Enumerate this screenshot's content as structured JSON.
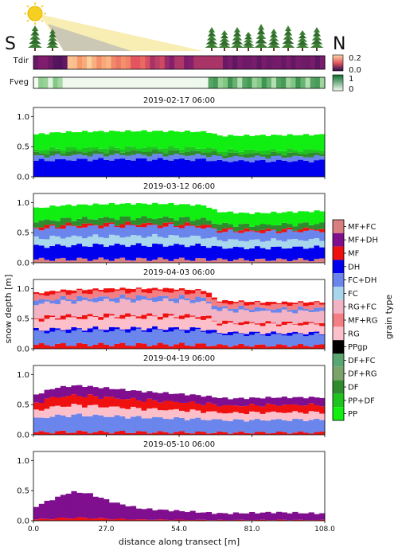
{
  "header": {
    "south_label": "S",
    "north_label": "N",
    "tdir_label": "Tdir",
    "fveg_label": "Fveg",
    "tdir_scale_ticks": [
      "0.2",
      "0.0"
    ],
    "fveg_scale_ticks": [
      "1",
      "0"
    ],
    "icons": [
      "sun-icon",
      "tree-icon"
    ]
  },
  "chart_data": {
    "type": "area",
    "xlabel": "distance along transect [m]",
    "ylabel": "snow depth [m]",
    "x_ticks": [
      "0.0",
      "27.0",
      "54.0",
      "81.0",
      "108.0"
    ],
    "y_ticks": [
      "0.0",
      "0.5",
      "1.0"
    ],
    "xlim": [
      0,
      108
    ],
    "ylim": [
      0,
      1.15
    ],
    "colorbar_title": "grain type",
    "grain_types": [
      {
        "name": "MF+FC",
        "color": "#d97f7f"
      },
      {
        "name": "MF+DH",
        "color": "#7f0f8f"
      },
      {
        "name": "MF",
        "color": "#ef1010"
      },
      {
        "name": "DH",
        "color": "#0000ee"
      },
      {
        "name": "FC+DH",
        "color": "#6a85ec"
      },
      {
        "name": "FC",
        "color": "#a8d6ec"
      },
      {
        "name": "RG+FC",
        "color": "#f2b3c4"
      },
      {
        "name": "MF+RG",
        "color": "#f37e84"
      },
      {
        "name": "RG",
        "color": "#fdc0cb"
      },
      {
        "name": "PPgp",
        "color": "#000000"
      },
      {
        "name": "DF+FC",
        "color": "#5aa672"
      },
      {
        "name": "DF+RG",
        "color": "#7ba36a"
      },
      {
        "name": "DF",
        "color": "#2e8b2e"
      },
      {
        "name": "PP+DF",
        "color": "#1ec41e"
      },
      {
        "name": "PP",
        "color": "#11ee11"
      }
    ],
    "panels": [
      {
        "title": "2019-02-17 06:00",
        "depth": [
          [
            0,
            0.7
          ],
          [
            10,
            0.74
          ],
          [
            20,
            0.75
          ],
          [
            40,
            0.76
          ],
          [
            60,
            0.75
          ],
          [
            66,
            0.74
          ],
          [
            68,
            0.68
          ],
          [
            90,
            0.69
          ],
          [
            108,
            0.7
          ]
        ],
        "layers": [
          {
            "type": "DH",
            "top": 0.38
          },
          {
            "type": "FC+DH",
            "top": 0.48
          },
          {
            "type": "DF",
            "top": 0.56
          },
          {
            "type": "PP+DF",
            "top": 0.64
          },
          {
            "type": "PP",
            "top": 1.0
          }
        ]
      },
      {
        "title": "2019-03-12 06:00",
        "depth": [
          [
            0,
            0.9
          ],
          [
            10,
            0.95
          ],
          [
            30,
            0.98
          ],
          [
            50,
            0.98
          ],
          [
            64,
            0.95
          ],
          [
            68,
            0.85
          ],
          [
            80,
            0.82
          ],
          [
            108,
            0.86
          ]
        ],
        "layers": [
          {
            "type": "MF+FC",
            "top": 0.06
          },
          {
            "type": "DH",
            "top": 0.3
          },
          {
            "type": "FC",
            "top": 0.45
          },
          {
            "type": "FC+DH",
            "top": 0.62
          },
          {
            "type": "MF",
            "top": 0.66
          },
          {
            "type": "DF",
            "top": 0.76
          },
          {
            "type": "PP",
            "top": 1.0
          }
        ]
      },
      {
        "title": "2019-04-03 06:00",
        "depth": [
          [
            0,
            0.92
          ],
          [
            10,
            0.97
          ],
          [
            30,
            1.0
          ],
          [
            50,
            1.0
          ],
          [
            64,
            0.97
          ],
          [
            68,
            0.8
          ],
          [
            90,
            0.77
          ],
          [
            108,
            0.78
          ]
        ],
        "layers": [
          {
            "type": "MF",
            "top": 0.07
          },
          {
            "type": "FC+DH",
            "top": 0.3
          },
          {
            "type": "DH",
            "top": 0.34
          },
          {
            "type": "RG",
            "top": 0.52
          },
          {
            "type": "MF",
            "top": 0.56
          },
          {
            "type": "RG+FC",
            "top": 0.8
          },
          {
            "type": "FC+DH",
            "top": 0.86
          },
          {
            "type": "MF+RG",
            "top": 0.95
          },
          {
            "type": "MF",
            "top": 1.0
          }
        ]
      },
      {
        "title": "2019-04-19 06:00",
        "depth": [
          [
            0,
            0.65
          ],
          [
            8,
            0.78
          ],
          [
            16,
            0.82
          ],
          [
            26,
            0.78
          ],
          [
            40,
            0.72
          ],
          [
            60,
            0.66
          ],
          [
            72,
            0.6
          ],
          [
            90,
            0.62
          ],
          [
            108,
            0.62
          ]
        ],
        "layers": [
          {
            "type": "MF",
            "top": 0.06
          },
          {
            "type": "FC+DH",
            "top": 0.4
          },
          {
            "type": "RG",
            "top": 0.6
          },
          {
            "type": "MF",
            "top": 0.8
          },
          {
            "type": "MF+DH",
            "top": 1.0
          }
        ]
      },
      {
        "title": "2019-05-10 06:00",
        "depth": [
          [
            0,
            0.22
          ],
          [
            5,
            0.32
          ],
          [
            14,
            0.48
          ],
          [
            20,
            0.46
          ],
          [
            30,
            0.3
          ],
          [
            40,
            0.2
          ],
          [
            55,
            0.16
          ],
          [
            70,
            0.12
          ],
          [
            90,
            0.14
          ],
          [
            108,
            0.12
          ]
        ],
        "layers": [
          {
            "type": "MF",
            "top": 0.1
          },
          {
            "type": "MF+DH",
            "top": 1.0
          }
        ]
      }
    ]
  }
}
